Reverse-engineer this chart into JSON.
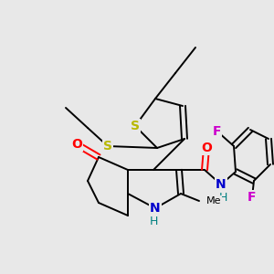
{
  "bg_color": "#e8e8e8",
  "bond_color": "#000000",
  "bond_width": 1.4,
  "figsize": [
    3.0,
    3.0
  ],
  "dpi": 100,
  "xlim": [
    0,
    300
  ],
  "ylim": [
    0,
    300
  ]
}
